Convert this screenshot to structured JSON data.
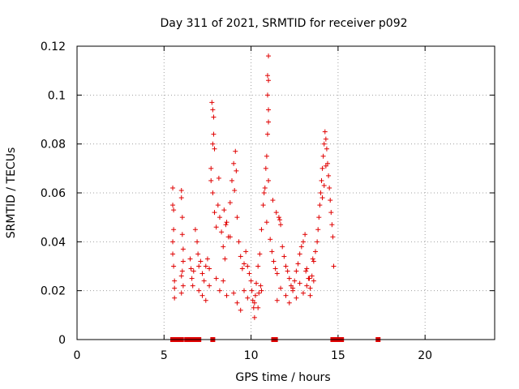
{
  "chart_data": {
    "type": "scatter",
    "title": "Day 311 of 2021, SRMTID for receiver p092",
    "xlabel": "GPS time / hours",
    "ylabel": "SRMTID / TECUs",
    "xlim": [
      0,
      24
    ],
    "ylim": [
      0,
      0.12
    ],
    "xticks": [
      0,
      5,
      10,
      15,
      20
    ],
    "xtick_labels": [
      "0",
      "5",
      "10",
      "15",
      "20"
    ],
    "yticks": [
      0,
      0.02,
      0.04,
      0.06,
      0.08,
      0.1,
      0.12
    ],
    "ytick_labels": [
      "0",
      "0.02",
      "0.04",
      "0.06",
      "0.08",
      "0.1",
      "0.12"
    ],
    "grid": true,
    "marker": "plus",
    "color": "#e00000",
    "series": [
      {
        "name": "SRMTID",
        "x": [
          5.5,
          5.5,
          5.55,
          5.55,
          5.5,
          5.5,
          5.55,
          5.6,
          5.6,
          5.6,
          6.0,
          6.0,
          6.05,
          6.05,
          6.1,
          6.1,
          6.0,
          6.1,
          6.0,
          6.05,
          6.5,
          6.55,
          6.6,
          6.7,
          6.65,
          6.8,
          6.9,
          6.95,
          7.0,
          7.1,
          7.2,
          7.3,
          7.4,
          7.5,
          7.6,
          7.7,
          7.8,
          7.85,
          7.9,
          7.8,
          7.75,
          7.8,
          7.85,
          7.7,
          7.9,
          8.0,
          8.1,
          8.15,
          8.2,
          8.3,
          8.4,
          8.5,
          8.6,
          8.7,
          8.8,
          8.9,
          9.0,
          9.1,
          9.2,
          9.3,
          9.4,
          9.5,
          9.6,
          9.7,
          9.8,
          9.9,
          10.0,
          10.05,
          10.1,
          10.15,
          10.2,
          10.25,
          10.3,
          10.4,
          10.5,
          10.6,
          10.7,
          10.75,
          10.8,
          10.85,
          10.9,
          10.95,
          11.0,
          11.0,
          10.95,
          11.0,
          10.95,
          11.0,
          11.0,
          10.9,
          11.1,
          11.2,
          11.3,
          11.4,
          11.5,
          11.6,
          11.7,
          11.8,
          11.9,
          12.0,
          12.1,
          12.2,
          12.3,
          12.4,
          12.5,
          12.6,
          12.7,
          12.8,
          12.9,
          13.0,
          13.1,
          13.2,
          13.3,
          13.4,
          13.5,
          13.6,
          13.7,
          13.8,
          13.85,
          13.9,
          13.95,
          14.0,
          14.05,
          14.1,
          14.15,
          14.2,
          14.25,
          14.3,
          14.35,
          14.4,
          14.45,
          14.5,
          14.55,
          14.6,
          14.65,
          14.7,
          14.75,
          14.1,
          14.2,
          14.3,
          7.0,
          7.2,
          7.4,
          7.6,
          8.0,
          8.2,
          8.4,
          8.6,
          9.0,
          9.2,
          9.4,
          9.6,
          9.8,
          10.2,
          10.4,
          10.6,
          11.5,
          11.7,
          12.0,
          12.2,
          12.4,
          12.6,
          12.8,
          13.0,
          13.2,
          13.4,
          13.6,
          8.8,
          9.05,
          9.15,
          8.55,
          8.45,
          10.45,
          10.55,
          11.25,
          11.45,
          11.65,
          13.15,
          13.35,
          13.55
        ],
        "y": [
          0.062,
          0.055,
          0.053,
          0.045,
          0.04,
          0.035,
          0.03,
          0.024,
          0.021,
          0.017,
          0.061,
          0.058,
          0.05,
          0.043,
          0.037,
          0.032,
          0.026,
          0.022,
          0.019,
          0.028,
          0.033,
          0.029,
          0.025,
          0.028,
          0.022,
          0.045,
          0.04,
          0.035,
          0.03,
          0.032,
          0.027,
          0.024,
          0.03,
          0.033,
          0.029,
          0.07,
          0.08,
          0.084,
          0.078,
          0.06,
          0.097,
          0.094,
          0.091,
          0.065,
          0.052,
          0.046,
          0.055,
          0.066,
          0.05,
          0.044,
          0.038,
          0.033,
          0.048,
          0.042,
          0.056,
          0.065,
          0.072,
          0.077,
          0.05,
          0.04,
          0.034,
          0.029,
          0.031,
          0.036,
          0.03,
          0.027,
          0.024,
          0.02,
          0.016,
          0.013,
          0.009,
          0.018,
          0.023,
          0.03,
          0.035,
          0.045,
          0.055,
          0.06,
          0.062,
          0.07,
          0.075,
          0.084,
          0.089,
          0.094,
          0.1,
          0.106,
          0.108,
          0.116,
          0.065,
          0.048,
          0.041,
          0.036,
          0.032,
          0.029,
          0.027,
          0.05,
          0.047,
          0.038,
          0.034,
          0.03,
          0.028,
          0.025,
          0.022,
          0.021,
          0.024,
          0.028,
          0.031,
          0.035,
          0.038,
          0.04,
          0.043,
          0.029,
          0.025,
          0.021,
          0.026,
          0.032,
          0.036,
          0.04,
          0.045,
          0.05,
          0.055,
          0.06,
          0.065,
          0.07,
          0.075,
          0.08,
          0.085,
          0.082,
          0.078,
          0.072,
          0.067,
          0.062,
          0.057,
          0.052,
          0.047,
          0.042,
          0.03,
          0.058,
          0.063,
          0.071,
          0.02,
          0.018,
          0.016,
          0.022,
          0.025,
          0.02,
          0.024,
          0.018,
          0.019,
          0.015,
          0.012,
          0.02,
          0.017,
          0.015,
          0.013,
          0.02,
          0.016,
          0.021,
          0.018,
          0.015,
          0.02,
          0.017,
          0.023,
          0.019,
          0.022,
          0.018,
          0.024,
          0.042,
          0.061,
          0.069,
          0.047,
          0.053,
          0.019,
          0.022,
          0.057,
          0.052,
          0.049,
          0.028,
          0.025,
          0.033
        ]
      }
    ],
    "zero_points_x": [
      5.5,
      5.6,
      5.8,
      6.0,
      6.3,
      6.4,
      6.5,
      6.6,
      6.7,
      6.8,
      7.0,
      7.8,
      11.3,
      11.4,
      14.7,
      14.8,
      14.9,
      15.1,
      15.2,
      17.3
    ]
  }
}
